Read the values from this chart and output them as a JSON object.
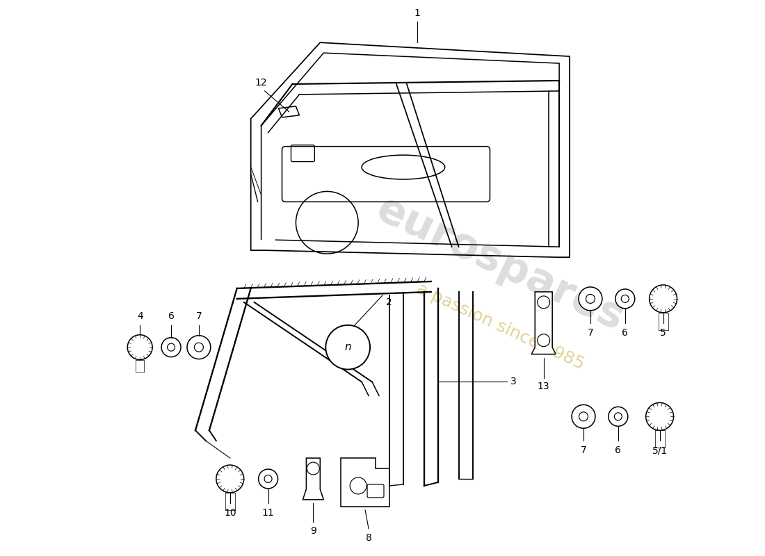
{
  "background_color": "#ffffff",
  "line_color": "#000000",
  "lw": 1.4,
  "watermark1": "eurospares",
  "watermark2": "a passion since 1985",
  "wm1_color": "#aaaaaa",
  "wm2_color": "#c8b040",
  "label_fs": 10
}
